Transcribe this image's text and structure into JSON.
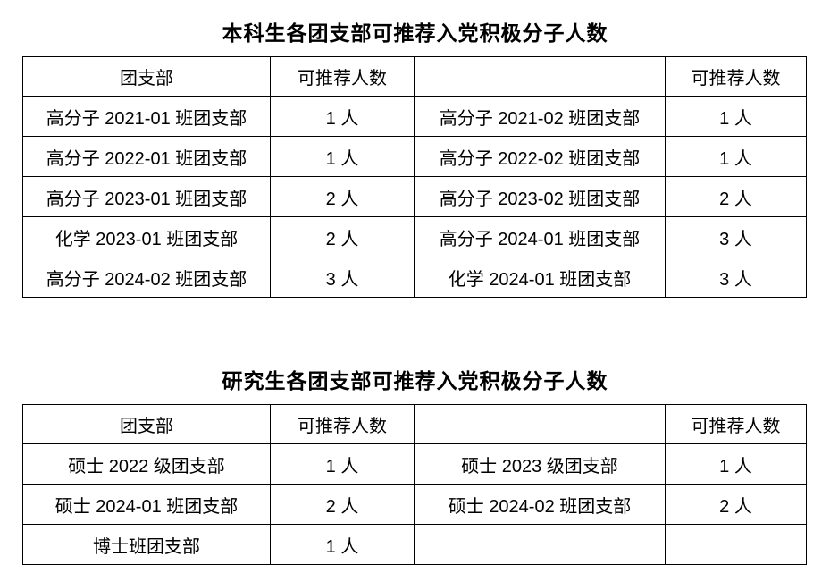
{
  "page": {
    "background_color": "#ffffff",
    "text_color": "#000000",
    "border_color": "#000000"
  },
  "tables": [
    {
      "title": "本科生各团支部可推荐入党积极分子人数",
      "headers": [
        "团支部",
        "可推荐人数",
        "",
        "可推荐人数"
      ],
      "rows": [
        [
          "高分子 2021-01 班团支部",
          "1 人",
          "高分子 2021-02 班团支部",
          "1 人"
        ],
        [
          "高分子 2022-01 班团支部",
          "1 人",
          "高分子 2022-02 班团支部",
          "1 人"
        ],
        [
          "高分子 2023-01 班团支部",
          "2 人",
          "高分子 2023-02 班团支部",
          "2 人"
        ],
        [
          "化学 2023-01 班团支部",
          "2 人",
          "高分子 2024-01 班团支部",
          "3 人"
        ],
        [
          "高分子 2024-02 班团支部",
          "3 人",
          "化学 2024-01 班团支部",
          "3 人"
        ]
      ]
    },
    {
      "title": "研究生各团支部可推荐入党积极分子人数",
      "headers": [
        "团支部",
        "可推荐人数",
        "",
        "可推荐人数"
      ],
      "rows": [
        [
          "硕士 2022 级团支部",
          "1 人",
          "硕士 2023 级团支部",
          "1 人"
        ],
        [
          "硕士 2024-01 班团支部",
          "2 人",
          "硕士 2024-02 班团支部",
          "2 人"
        ],
        [
          "博士班团支部",
          "1 人",
          "",
          ""
        ]
      ]
    }
  ]
}
